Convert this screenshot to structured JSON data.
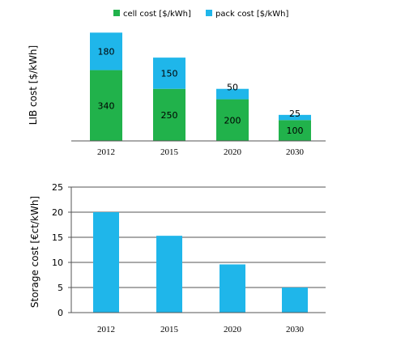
{
  "colors": {
    "cell": "#21b24b",
    "pack": "#1fb6ea",
    "storage": "#1fb6ea",
    "axis": "#555555",
    "grid": "#555555"
  },
  "chart_data": [
    {
      "type": "bar",
      "stacked": true,
      "categories": [
        "2012",
        "2015",
        "2020",
        "2030"
      ],
      "series": [
        {
          "name": "cell cost [$/kWh]",
          "values": [
            340,
            250,
            200,
            100
          ]
        },
        {
          "name": "pack cost [$/kWh]",
          "values": [
            180,
            150,
            50,
            25
          ]
        }
      ],
      "ylabel": "LIB cost [$/kWh]",
      "ylim": [
        0,
        560
      ],
      "grid": false,
      "legend": "top-center",
      "data_labels": true
    },
    {
      "type": "bar",
      "categories": [
        "2012",
        "2015",
        "2020",
        "2030"
      ],
      "values": [
        20,
        15.3,
        9.6,
        5
      ],
      "ylabel": "Storage cost [€ct/kWh]",
      "ylim": [
        0,
        25
      ],
      "yticks": [
        "0",
        "5",
        "10",
        "15",
        "20",
        "25"
      ],
      "grid": true
    }
  ]
}
